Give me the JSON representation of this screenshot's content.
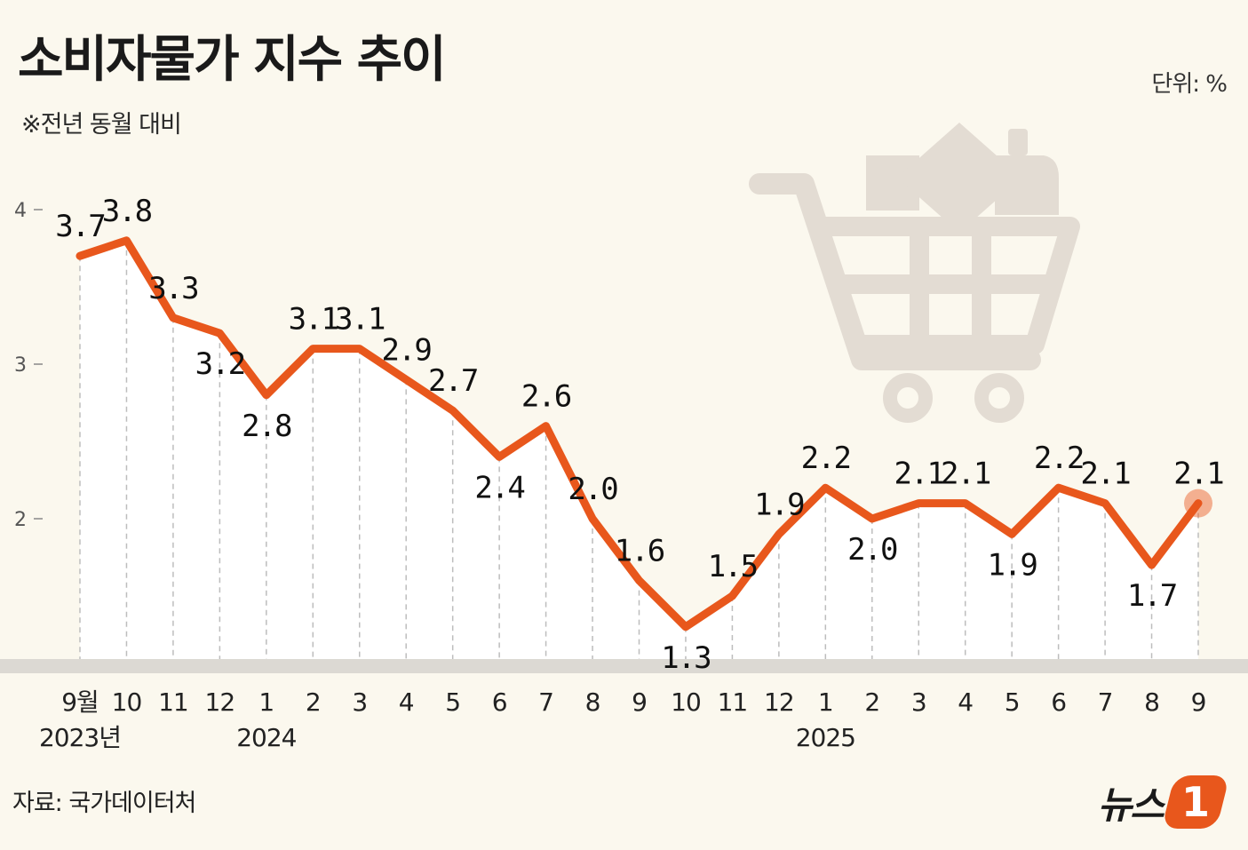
{
  "header": {
    "title": "소비자물가 지수 추이",
    "subtitle": "※전년 동월 대비",
    "unit": "단위:  %"
  },
  "footer": {
    "source": "자료: 국가데이터처",
    "brand_text": "뉴스",
    "brand_badge": "1"
  },
  "colors": {
    "line": "#e8571c",
    "background": "#fbf8ee",
    "cart_icon": "#e3dcd3"
  },
  "chart_data": {
    "type": "line",
    "title": "소비자물가 지수 추이",
    "subtitle": "※전년 동월 대비",
    "categories": [
      "9월",
      "10",
      "11",
      "12",
      "1",
      "2",
      "3",
      "4",
      "5",
      "6",
      "7",
      "8",
      "9",
      "10",
      "11",
      "12",
      "1",
      "2",
      "3",
      "4",
      "5",
      "6",
      "7",
      "8",
      "9"
    ],
    "year_labels": [
      {
        "index": 0,
        "label": "2023년"
      },
      {
        "index": 4,
        "label": "2024"
      },
      {
        "index": 16,
        "label": "2025"
      }
    ],
    "values": [
      3.7,
      3.8,
      3.3,
      3.2,
      2.8,
      3.1,
      3.1,
      2.9,
      2.7,
      2.4,
      2.6,
      2.0,
      1.6,
      1.3,
      1.5,
      1.9,
      2.2,
      2.0,
      2.1,
      2.1,
      1.9,
      2.2,
      2.1,
      1.7,
      2.1
    ],
    "value_labels": [
      "3.7",
      "3.8",
      "3.3",
      "3.2",
      "2.8",
      "3.1",
      "3.1",
      "2.9",
      "2.7",
      "2.4",
      "2.6",
      "2.0",
      "1.6",
      "1.3",
      "1.5",
      "1.9",
      "2.2",
      "2.0",
      "2.1",
      "2.1",
      "1.9",
      "2.2",
      "2.1",
      "1.7",
      "2.1"
    ],
    "label_side": [
      "above",
      "above",
      "above",
      "below",
      "below",
      "above",
      "above",
      "above",
      "above",
      "below",
      "above",
      "above",
      "above",
      "below",
      "above",
      "above",
      "above",
      "below",
      "above",
      "above",
      "below",
      "above",
      "above",
      "below",
      "above"
    ],
    "yticks": [
      2,
      3,
      4
    ],
    "ylim": [
      1.05,
      4.1
    ],
    "grid": false,
    "legend": "none",
    "highlight_last": true
  }
}
